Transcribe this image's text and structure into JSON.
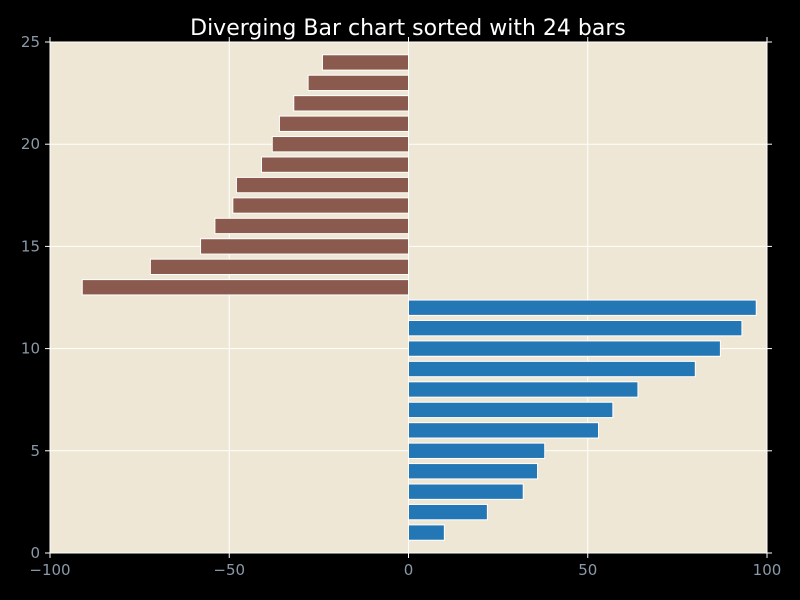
{
  "chart_data": {
    "type": "bar",
    "orientation": "horizontal",
    "title": "Diverging Bar chart sorted with 24 bars",
    "xlabel": "",
    "ylabel": "",
    "xlim": [
      -100,
      100
    ],
    "ylim": [
      0,
      25
    ],
    "xticks": [
      -100,
      -50,
      0,
      50,
      100
    ],
    "yticks": [
      0,
      5,
      10,
      15,
      20,
      25
    ],
    "grid": true,
    "legend": false,
    "colors": {
      "background": "#000000",
      "plot_area": "#efe7d6",
      "positive": "#2277b4",
      "negative": "#8b5a4e",
      "grid": "#ffffff",
      "tick_label": "#8a9aa8",
      "title": "#ffffff"
    },
    "bars": [
      {
        "y": 1,
        "value": 10
      },
      {
        "y": 2,
        "value": 22
      },
      {
        "y": 3,
        "value": 32
      },
      {
        "y": 4,
        "value": 36
      },
      {
        "y": 5,
        "value": 38
      },
      {
        "y": 6,
        "value": 53
      },
      {
        "y": 7,
        "value": 57
      },
      {
        "y": 8,
        "value": 64
      },
      {
        "y": 9,
        "value": 80
      },
      {
        "y": 10,
        "value": 87
      },
      {
        "y": 11,
        "value": 93
      },
      {
        "y": 12,
        "value": 97
      },
      {
        "y": 13,
        "value": -91
      },
      {
        "y": 14,
        "value": -72
      },
      {
        "y": 15,
        "value": -58
      },
      {
        "y": 16,
        "value": -54
      },
      {
        "y": 17,
        "value": -49
      },
      {
        "y": 18,
        "value": -48
      },
      {
        "y": 19,
        "value": -41
      },
      {
        "y": 20,
        "value": -38
      },
      {
        "y": 21,
        "value": -36
      },
      {
        "y": 22,
        "value": -32
      },
      {
        "y": 23,
        "value": -28
      },
      {
        "y": 24,
        "value": -24
      }
    ]
  }
}
